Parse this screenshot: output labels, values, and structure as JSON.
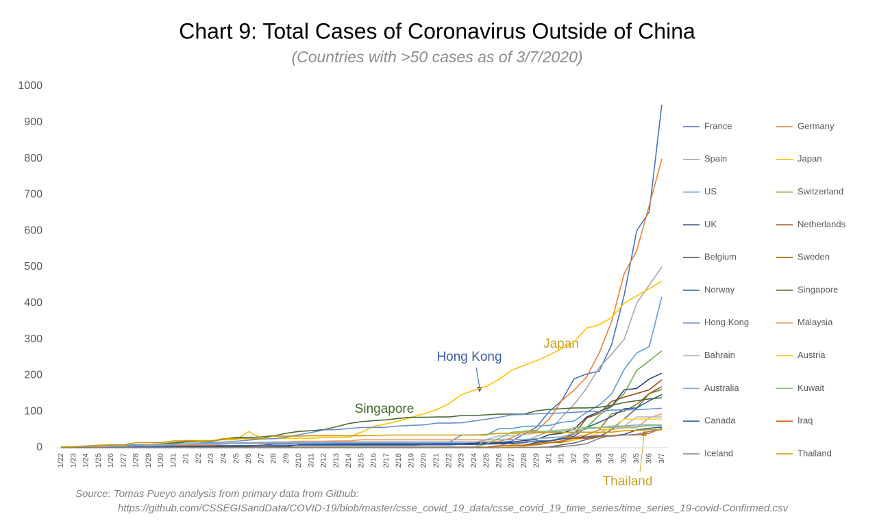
{
  "chart_data": {
    "type": "line",
    "title": "Chart 9: Total Cases of Coronavirus Outside of China",
    "subtitle": "(Countries with >50 cases as of 3/7/2020)",
    "source": [
      "Source: Tomas Pueyo analysis from primary data from Github:",
      "https://github.com/CSSEGISandData/COVID-19/blob/master/csse_covid_19_data/csse_covid_19_time_series/time_series_19-covid-Confirmed.csv"
    ],
    "categories": [
      "1/22",
      "1/23",
      "1/24",
      "1/25",
      "1/26",
      "1/27",
      "1/28",
      "1/29",
      "1/30",
      "1/31",
      "2/1",
      "2/2",
      "2/3",
      "2/4",
      "2/5",
      "2/6",
      "2/7",
      "2/8",
      "2/9",
      "2/10",
      "2/11",
      "2/12",
      "2/13",
      "2/14",
      "2/15",
      "2/16",
      "2/17",
      "2/18",
      "2/19",
      "2/20",
      "2/21",
      "2/22",
      "2/23",
      "2/24",
      "2/25",
      "2/26",
      "2/27",
      "2/28",
      "2/29",
      "3/1",
      "3/1",
      "3/2",
      "3/3",
      "3/3",
      "3/4",
      "3/5",
      "3/5",
      "3/6",
      "3/7"
    ],
    "ylim": [
      0,
      1000
    ],
    "yticks": [
      0,
      100,
      200,
      300,
      400,
      500,
      600,
      700,
      800,
      900,
      1000
    ],
    "grid": false,
    "annotations": [
      {
        "text": "Japan",
        "color": "#c9a227"
      },
      {
        "text": "Hong Kong",
        "color": "#3b5ea6"
      },
      {
        "text": "Singapore",
        "color": "#43682b"
      },
      {
        "text": "Thailand",
        "color": "#c9a227"
      }
    ],
    "series": [
      {
        "name": "France",
        "color": "#4472c4",
        "values": [
          0,
          0,
          2,
          3,
          3,
          3,
          4,
          5,
          5,
          5,
          6,
          6,
          6,
          6,
          6,
          6,
          6,
          11,
          11,
          11,
          11,
          11,
          11,
          11,
          12,
          12,
          12,
          12,
          12,
          12,
          12,
          12,
          12,
          12,
          12,
          14,
          18,
          38,
          57,
          100,
          130,
          191,
          204,
          212,
          285,
          423,
          600,
          653,
          949
        ]
      },
      {
        "name": "Germany",
        "color": "#ed7d31",
        "values": [
          0,
          0,
          0,
          0,
          0,
          1,
          4,
          4,
          4,
          5,
          8,
          10,
          12,
          12,
          12,
          12,
          13,
          13,
          14,
          14,
          16,
          16,
          16,
          16,
          16,
          16,
          16,
          16,
          16,
          16,
          16,
          16,
          16,
          16,
          16,
          17,
          27,
          46,
          48,
          79,
          130,
          159,
          196,
          262,
          350,
          482,
          545,
          670,
          799
        ]
      },
      {
        "name": "Spain",
        "color": "#a5a5a5",
        "values": [
          0,
          0,
          0,
          0,
          0,
          0,
          0,
          0,
          0,
          0,
          1,
          1,
          1,
          1,
          1,
          1,
          1,
          1,
          1,
          2,
          2,
          2,
          2,
          2,
          2,
          2,
          2,
          2,
          2,
          2,
          2,
          2,
          2,
          2,
          2,
          6,
          13,
          15,
          32,
          45,
          84,
          120,
          165,
          222,
          259,
          300,
          400,
          450,
          500
        ]
      },
      {
        "name": "Japan",
        "color": "#ffc000",
        "values": [
          2,
          1,
          2,
          2,
          4,
          4,
          7,
          7,
          11,
          15,
          20,
          20,
          20,
          22,
          22,
          45,
          25,
          25,
          26,
          26,
          26,
          28,
          28,
          29,
          43,
          59,
          66,
          74,
          84,
          94,
          105,
          122,
          147,
          159,
          170,
          189,
          214,
          228,
          241,
          256,
          274,
          293,
          331,
          340,
          360,
          400,
          420,
          440,
          461
        ]
      },
      {
        "name": "US",
        "color": "#5b9bd5",
        "values": [
          1,
          1,
          2,
          2,
          5,
          5,
          5,
          5,
          5,
          7,
          8,
          8,
          11,
          11,
          11,
          11,
          11,
          11,
          11,
          11,
          12,
          12,
          13,
          13,
          13,
          13,
          13,
          13,
          13,
          13,
          15,
          15,
          35,
          35,
          35,
          53,
          53,
          59,
          60,
          62,
          70,
          74,
          98,
          118,
          149,
          217,
          262,
          280,
          417
        ]
      },
      {
        "name": "Switzerland",
        "color": "#70ad47",
        "values": [
          0,
          0,
          0,
          0,
          0,
          0,
          0,
          0,
          0,
          0,
          0,
          0,
          0,
          0,
          0,
          0,
          0,
          0,
          0,
          0,
          0,
          0,
          0,
          0,
          0,
          0,
          0,
          0,
          0,
          0,
          0,
          0,
          0,
          0,
          0,
          1,
          1,
          8,
          8,
          18,
          27,
          42,
          56,
          90,
          114,
          150,
          214,
          240,
          268
        ]
      },
      {
        "name": "UK",
        "color": "#264478",
        "values": [
          0,
          0,
          0,
          0,
          0,
          0,
          0,
          0,
          0,
          2,
          2,
          2,
          2,
          2,
          2,
          2,
          2,
          3,
          3,
          8,
          8,
          8,
          8,
          9,
          9,
          9,
          9,
          9,
          9,
          9,
          9,
          9,
          9,
          13,
          13,
          13,
          15,
          20,
          23,
          36,
          40,
          51,
          85,
          100,
          115,
          160,
          164,
          190,
          206
        ]
      },
      {
        "name": "Netherlands",
        "color": "#9e480e",
        "values": [
          0,
          0,
          0,
          0,
          0,
          0,
          0,
          0,
          0,
          0,
          0,
          0,
          0,
          0,
          0,
          0,
          0,
          0,
          0,
          0,
          0,
          0,
          0,
          0,
          0,
          0,
          0,
          0,
          0,
          0,
          0,
          0,
          0,
          0,
          0,
          0,
          1,
          6,
          10,
          18,
          24,
          38,
          82,
          95,
          128,
          140,
          150,
          160,
          188
        ]
      },
      {
        "name": "Belgium",
        "color": "#636363",
        "values": [
          0,
          0,
          0,
          0,
          0,
          0,
          0,
          0,
          0,
          0,
          0,
          0,
          0,
          1,
          1,
          1,
          1,
          1,
          1,
          1,
          1,
          1,
          1,
          1,
          1,
          1,
          1,
          1,
          1,
          1,
          1,
          1,
          1,
          1,
          1,
          1,
          1,
          1,
          1,
          2,
          8,
          13,
          23,
          30,
          50,
          80,
          109,
          150,
          169
        ]
      },
      {
        "name": "Sweden",
        "color": "#997300",
        "values": [
          0,
          0,
          0,
          0,
          0,
          0,
          0,
          0,
          0,
          1,
          1,
          1,
          1,
          1,
          1,
          1,
          1,
          1,
          1,
          1,
          1,
          1,
          1,
          1,
          1,
          1,
          1,
          1,
          1,
          1,
          1,
          1,
          1,
          1,
          1,
          1,
          7,
          7,
          12,
          14,
          15,
          21,
          35,
          50,
          94,
          101,
          120,
          150,
          161
        ]
      },
      {
        "name": "Norway",
        "color": "#255e91",
        "values": [
          0,
          0,
          0,
          0,
          0,
          0,
          0,
          0,
          0,
          0,
          0,
          0,
          0,
          0,
          0,
          0,
          0,
          0,
          0,
          0,
          0,
          0,
          0,
          0,
          0,
          0,
          0,
          0,
          0,
          0,
          0,
          0,
          0,
          0,
          0,
          1,
          1,
          6,
          15,
          19,
          25,
          32,
          56,
          70,
          86,
          108,
          110,
          130,
          147
        ]
      },
      {
        "name": "Singapore",
        "color": "#43682b",
        "values": [
          0,
          1,
          3,
          3,
          4,
          5,
          7,
          7,
          10,
          13,
          16,
          18,
          18,
          24,
          28,
          28,
          30,
          33,
          40,
          45,
          47,
          50,
          58,
          67,
          72,
          75,
          77,
          81,
          84,
          84,
          85,
          85,
          89,
          89,
          91,
          93,
          93,
          93,
          102,
          106,
          108,
          110,
          110,
          112,
          117,
          125,
          130,
          135,
          138
        ]
      },
      {
        "name": "Hong Kong",
        "color": "#698ed0",
        "values": [
          0,
          2,
          2,
          5,
          5,
          8,
          8,
          8,
          10,
          10,
          12,
          13,
          15,
          15,
          18,
          21,
          24,
          25,
          29,
          36,
          42,
          49,
          50,
          53,
          56,
          56,
          57,
          60,
          62,
          63,
          68,
          68,
          69,
          74,
          79,
          84,
          91,
          92,
          94,
          95,
          96,
          98,
          100,
          100,
          104,
          105,
          105,
          107,
          109
        ]
      },
      {
        "name": "Malaysia",
        "color": "#f1975a",
        "values": [
          0,
          0,
          0,
          3,
          4,
          4,
          4,
          7,
          8,
          8,
          8,
          8,
          8,
          10,
          12,
          12,
          12,
          16,
          16,
          18,
          18,
          18,
          19,
          19,
          22,
          22,
          22,
          22,
          22,
          22,
          22,
          22,
          22,
          22,
          22,
          22,
          23,
          23,
          25,
          29,
          29,
          29,
          36,
          50,
          50,
          55,
          55,
          83,
          93
        ]
      },
      {
        "name": "Bahrain",
        "color": "#b7b7b7",
        "values": [
          0,
          0,
          0,
          0,
          0,
          0,
          0,
          0,
          0,
          0,
          0,
          0,
          0,
          0,
          0,
          0,
          0,
          0,
          0,
          0,
          0,
          0,
          0,
          0,
          0,
          0,
          0,
          0,
          0,
          0,
          0,
          0,
          0,
          1,
          23,
          33,
          33,
          36,
          41,
          47,
          49,
          49,
          52,
          55,
          60,
          60,
          85,
          85,
          85
        ]
      },
      {
        "name": "Austria",
        "color": "#ffcd33",
        "values": [
          0,
          0,
          0,
          0,
          0,
          0,
          0,
          0,
          0,
          0,
          0,
          0,
          0,
          0,
          0,
          0,
          0,
          0,
          0,
          0,
          0,
          0,
          0,
          0,
          0,
          0,
          0,
          0,
          0,
          0,
          0,
          0,
          0,
          0,
          2,
          2,
          3,
          3,
          9,
          14,
          18,
          21,
          29,
          41,
          55,
          79,
          79,
          79,
          79
        ]
      },
      {
        "name": "Australia",
        "color": "#7cafdd",
        "values": [
          0,
          0,
          0,
          0,
          4,
          5,
          5,
          5,
          9,
          9,
          12,
          12,
          12,
          13,
          13,
          14,
          15,
          15,
          15,
          15,
          15,
          15,
          15,
          15,
          15,
          15,
          15,
          15,
          15,
          15,
          15,
          15,
          15,
          15,
          22,
          22,
          22,
          23,
          25,
          27,
          30,
          39,
          52,
          55,
          60,
          60,
          63,
          63,
          63
        ]
      },
      {
        "name": "Kuwait",
        "color": "#8cc168",
        "values": [
          0,
          0,
          0,
          0,
          0,
          0,
          0,
          0,
          0,
          0,
          0,
          0,
          0,
          0,
          0,
          0,
          0,
          0,
          0,
          0,
          0,
          0,
          0,
          0,
          0,
          0,
          0,
          0,
          0,
          0,
          0,
          0,
          0,
          1,
          11,
          26,
          43,
          45,
          45,
          45,
          45,
          56,
          56,
          56,
          56,
          58,
          58,
          61,
          61
        ]
      },
      {
        "name": "Canada",
        "color": "#335aa1",
        "values": [
          0,
          0,
          0,
          0,
          1,
          1,
          2,
          2,
          2,
          4,
          4,
          4,
          4,
          4,
          5,
          5,
          7,
          7,
          7,
          7,
          7,
          7,
          7,
          7,
          7,
          7,
          7,
          7,
          7,
          8,
          8,
          8,
          9,
          9,
          10,
          11,
          11,
          14,
          19,
          19,
          24,
          27,
          30,
          33,
          33,
          37,
          49,
          54,
          57
        ]
      },
      {
        "name": "Iraq",
        "color": "#d26012",
        "values": [
          0,
          0,
          0,
          0,
          0,
          0,
          0,
          0,
          0,
          0,
          0,
          0,
          0,
          0,
          0,
          0,
          0,
          0,
          0,
          0,
          0,
          0,
          0,
          0,
          0,
          0,
          0,
          0,
          0,
          0,
          0,
          0,
          0,
          1,
          1,
          5,
          6,
          7,
          8,
          13,
          19,
          26,
          26,
          31,
          32,
          35,
          35,
          40,
          54
        ]
      },
      {
        "name": "Iceland",
        "color": "#848484",
        "values": [
          0,
          0,
          0,
          0,
          0,
          0,
          0,
          0,
          0,
          0,
          0,
          0,
          0,
          0,
          0,
          0,
          0,
          0,
          0,
          0,
          0,
          0,
          0,
          0,
          0,
          0,
          0,
          0,
          0,
          0,
          0,
          0,
          0,
          0,
          0,
          0,
          0,
          1,
          1,
          1,
          3,
          6,
          11,
          26,
          34,
          35,
          37,
          45,
          50
        ]
      },
      {
        "name": "Thailand",
        "color": "#cc9a00",
        "values": [
          2,
          3,
          5,
          7,
          8,
          8,
          14,
          14,
          14,
          19,
          19,
          19,
          19,
          25,
          25,
          25,
          25,
          32,
          32,
          32,
          33,
          33,
          33,
          33,
          33,
          34,
          35,
          35,
          35,
          35,
          35,
          35,
          35,
          35,
          37,
          40,
          40,
          41,
          42,
          42,
          42,
          43,
          43,
          43,
          43,
          47,
          48,
          50,
          50
        ]
      }
    ]
  }
}
